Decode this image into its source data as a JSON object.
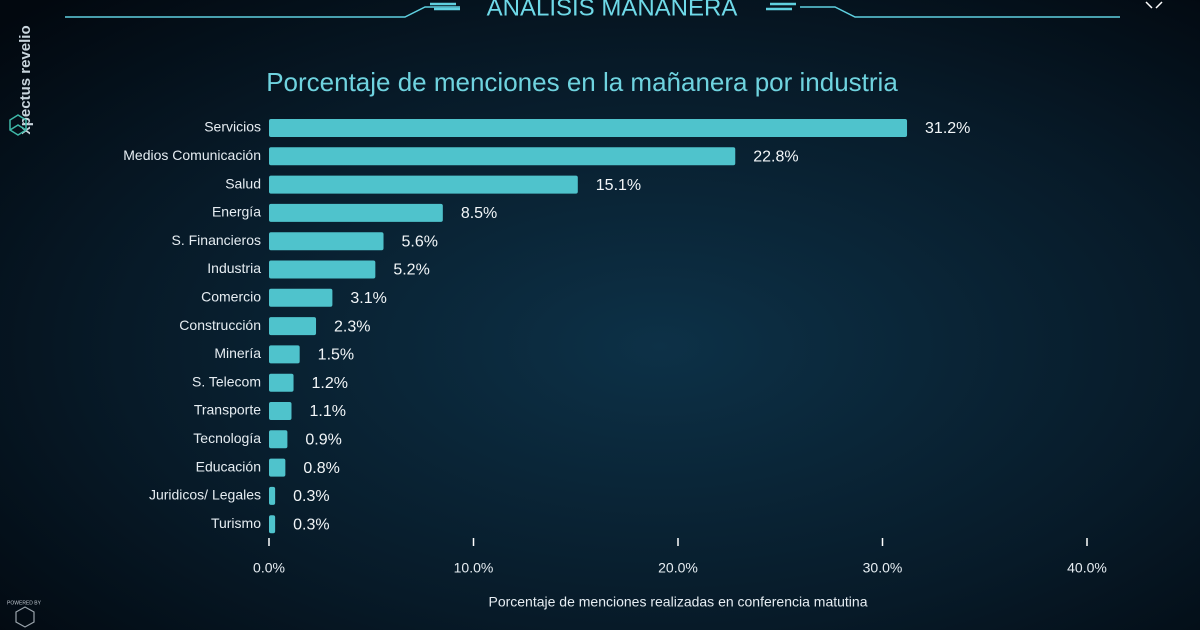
{
  "header": {
    "title": "ANALISIS MAÑANERA",
    "brand": "xpectus revelio",
    "powered_by": "POWERED BY"
  },
  "chart_data": {
    "type": "hbar",
    "title": "Porcentaje de menciones en la mañanera por industria",
    "x_label": "Porcentaje de menciones realizadas en conferencia matutina",
    "color": "#4fc3cc",
    "categories": [
      "Servicios",
      "Medios Comunicación",
      "Salud",
      "Energía",
      "S. Financieros",
      "Industria",
      "Comercio",
      "Construcción",
      "Minería",
      "S. Telecom",
      "Transporte",
      "Tecnología",
      "Educación",
      "Juridicos/ Legales",
      "Turismo"
    ],
    "values": [
      31.2,
      22.8,
      15.1,
      8.5,
      5.6,
      5.2,
      3.1,
      2.3,
      1.5,
      1.2,
      1.1,
      0.9,
      0.8,
      0.3,
      0.3
    ],
    "value_labels": [
      "31.2%",
      "22.8%",
      "15.1%",
      "8.5%",
      "5.6%",
      "5.2%",
      "3.1%",
      "2.3%",
      "1.5%",
      "1.2%",
      "1.1%",
      "0.9%",
      "0.8%",
      "0.3%",
      "0.3%"
    ],
    "xlim": [
      0,
      40
    ],
    "xticks": [
      {
        "value": 0,
        "label": "0.0%"
      },
      {
        "value": 10,
        "label": "10.0%"
      },
      {
        "value": 20,
        "label": "20.0%"
      },
      {
        "value": 30,
        "label": "30.0%"
      },
      {
        "value": 40,
        "label": "40.0%"
      }
    ]
  }
}
